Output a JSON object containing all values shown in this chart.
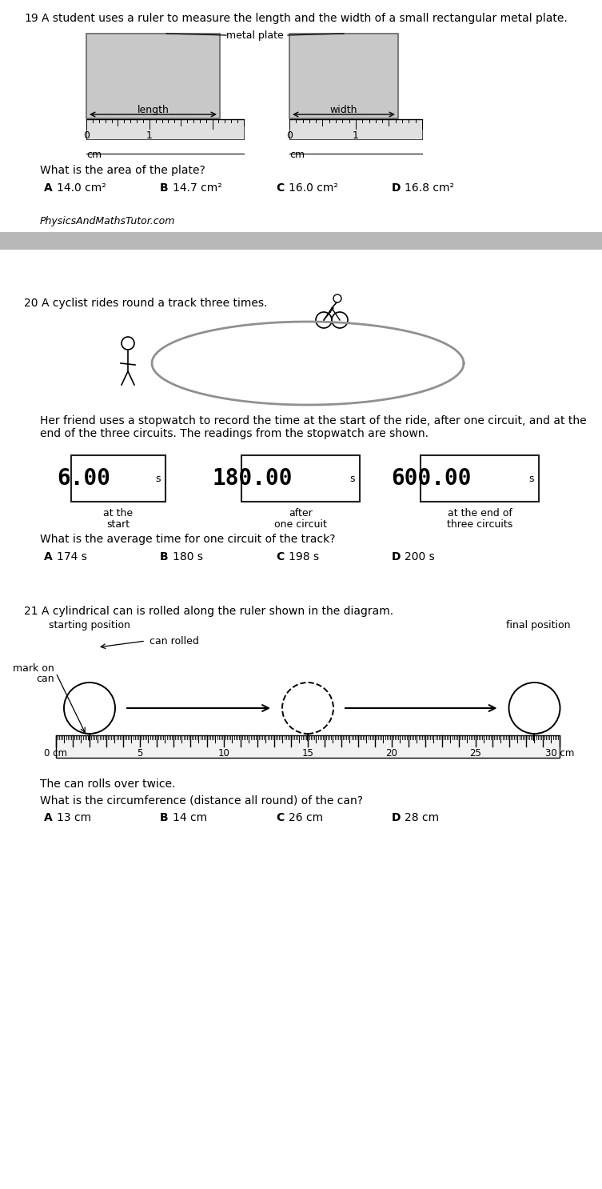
{
  "bg_color": "#ffffff",
  "separator_color": "#c0c0c0",
  "q19": {
    "number": "19",
    "text": "A student uses a ruler to measure the length and the width of a small rectangular metal plate.",
    "metal_plate_label": "metal plate",
    "length_label": "length",
    "width_label": "width",
    "cm_label": "cm",
    "question": "What is the area of the plate?",
    "options": [
      {
        "letter": "A",
        "text": "14.0 cm²"
      },
      {
        "letter": "B",
        "text": "14.7 cm²"
      },
      {
        "letter": "C",
        "text": "16.0 cm²"
      },
      {
        "letter": "D",
        "text": "16.8 cm²"
      }
    ]
  },
  "watermark": "PhysicsAndMathsTutor.com",
  "q20": {
    "number": "20",
    "text": "A cyclist rides round a track three times.",
    "text2a": "Her friend uses a stopwatch to record the time at the start of the ride, after one circuit, and at the",
    "text2b": "end of the three circuits. The readings from the stopwatch are shown.",
    "displays": [
      {
        "value": "6.00",
        "suffix": "s",
        "label1": "at the",
        "label2": "start"
      },
      {
        "value": "180.00",
        "suffix": "s",
        "label1": "after",
        "label2": "one circuit"
      },
      {
        "value": "600.00",
        "suffix": "s",
        "label1": "at the end of",
        "label2": "three circuits"
      }
    ],
    "question": "What is the average time for one circuit of the track?",
    "options": [
      {
        "letter": "A",
        "text": "174 s"
      },
      {
        "letter": "B",
        "text": "180 s"
      },
      {
        "letter": "C",
        "text": "198 s"
      },
      {
        "letter": "D",
        "text": "200 s"
      }
    ]
  },
  "q21": {
    "number": "21",
    "text": "A cylindrical can is rolled along the ruler shown in the diagram.",
    "start_label": "starting position",
    "end_label": "final position",
    "can_rolled_label": "can rolled",
    "mark_label1": "mark on",
    "mark_label2": "can",
    "ruler_labels": [
      0,
      5,
      10,
      15,
      20,
      25,
      30
    ],
    "ruler_label_texts": [
      "0 cm",
      "5",
      "10",
      "15",
      "20",
      "25",
      "30 cm"
    ],
    "text2": "The can rolls over twice.",
    "question": "What is the circumference (distance all round) of the can?",
    "options": [
      {
        "letter": "A",
        "text": "13 cm"
      },
      {
        "letter": "B",
        "text": "14 cm"
      },
      {
        "letter": "C",
        "text": "26 cm"
      },
      {
        "letter": "D",
        "text": "28 cm"
      }
    ]
  }
}
